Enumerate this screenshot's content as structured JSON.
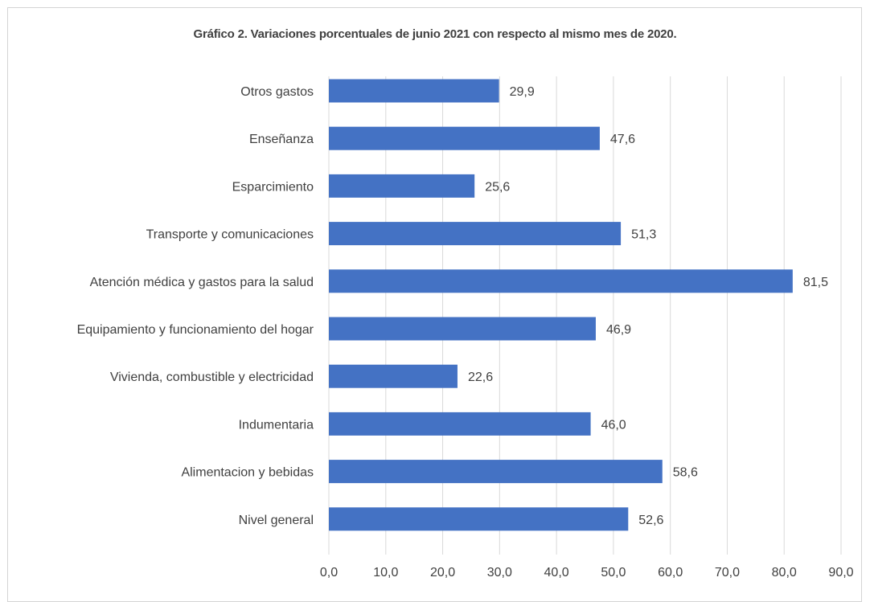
{
  "chart_data": {
    "type": "bar",
    "orientation": "horizontal",
    "title": "Gráfico 2. Variaciones porcentuales de junio 2021 con respecto  al mismo mes de 2020.",
    "categories": [
      "Otros gastos",
      "Enseñanza",
      "Esparcimiento",
      "Transporte y comunicaciones",
      "Atención médica y gastos para la salud",
      "Equipamiento y funcionamiento del hogar",
      "Vivienda, combustible y electricidad",
      "Indumentaria",
      "Alimentacion y bebidas",
      "Nivel general"
    ],
    "values": [
      29.9,
      47.6,
      25.6,
      51.3,
      81.5,
      46.9,
      22.6,
      46.0,
      58.6,
      52.6
    ],
    "data_labels": [
      "29,9",
      "47,6",
      "25,6",
      "51,3",
      "81,5",
      "46,9",
      "22,6",
      "46,0",
      "58,6",
      "52,6"
    ],
    "xlim": [
      0,
      90
    ],
    "xticks": [
      0,
      10,
      20,
      30,
      40,
      50,
      60,
      70,
      80,
      90
    ],
    "xtick_labels": [
      "0,0",
      "10,0",
      "20,0",
      "30,0",
      "40,0",
      "50,0",
      "60,0",
      "70,0",
      "80,0",
      "90,0"
    ],
    "grid": "vertical",
    "legend": "none",
    "bar_color": "#4472c4",
    "grid_color": "#d9d9d9"
  }
}
